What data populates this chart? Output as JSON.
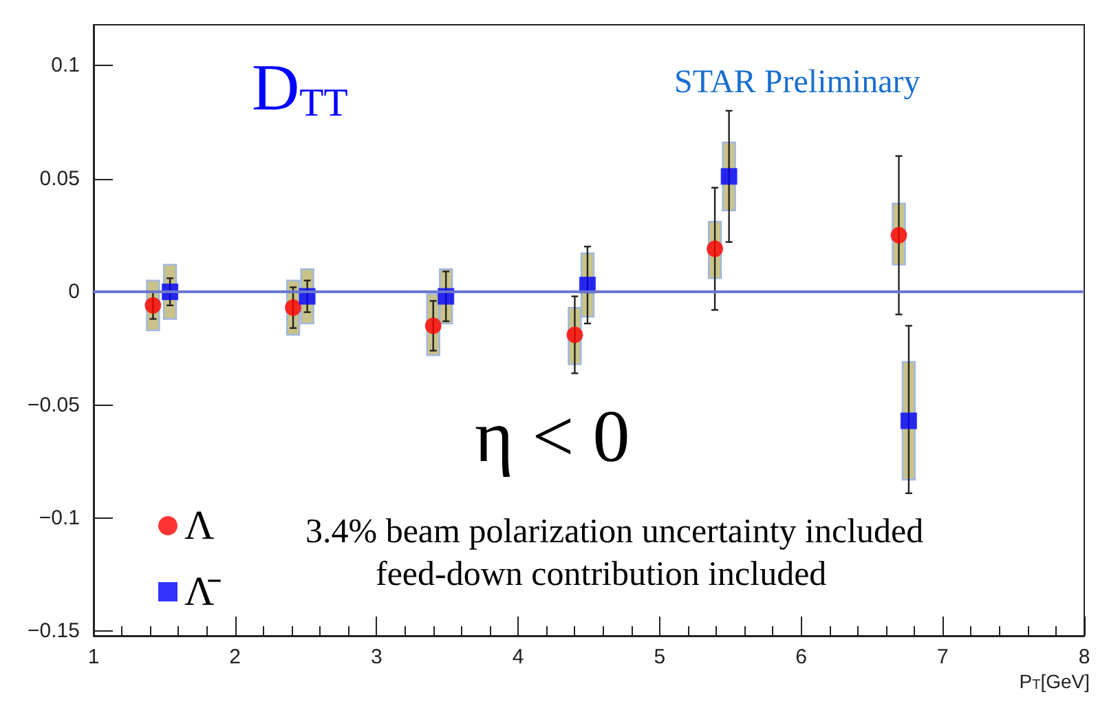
{
  "chart_data": {
    "type": "scatter",
    "xlabel": "P$_{T}$[GeV]",
    "xlim": [
      1,
      8
    ],
    "xticks": [
      1,
      2,
      3,
      4,
      5,
      6,
      7,
      8
    ],
    "ylim": [
      -0.152,
      0.118
    ],
    "yticks": [
      -0.15,
      -0.1,
      -0.05,
      0,
      0.05,
      0.1
    ],
    "grid": false,
    "legend": "bottom left",
    "ref_lines": [
      {
        "axis": "y",
        "value": 0,
        "color": "#6a78d0"
      }
    ],
    "annotations": [
      "D$_{TT}$",
      "STAR Preliminary",
      "η < 0",
      "3.4% beam polarization uncertainty included",
      "feed-down contribution included"
    ],
    "series": [
      {
        "type": "bar",
        "color": "#c9c389",
        "x": [
          1.42,
          2.41,
          3.4,
          4.4,
          5.39,
          6.69
        ],
        "base": [
          -0.017,
          -0.019,
          -0.028,
          -0.032,
          0.006,
          0.012
        ],
        "values": [
          0.022,
          0.024,
          0.027,
          0.025,
          0.025,
          0.027
        ]
      },
      {
        "type": "bar",
        "color": "#c9c389",
        "x": [
          1.54,
          2.51,
          3.49,
          4.49,
          5.49,
          6.76
        ],
        "base": [
          -0.012,
          -0.014,
          -0.014,
          -0.011,
          0.036,
          -0.083
        ],
        "values": [
          0.024,
          0.024,
          0.024,
          0.028,
          0.03,
          0.052
        ]
      },
      {
        "name": "Λ",
        "color": "#ff0000",
        "marker": "circle",
        "x": [
          1.42,
          2.41,
          3.4,
          4.4,
          5.39,
          6.69
        ],
        "values": [
          -0.006,
          -0.007,
          -0.015,
          -0.019,
          0.019,
          0.025
        ],
        "errors": [
          0.006,
          0.009,
          0.011,
          0.017,
          0.027,
          0.035
        ]
      },
      {
        "name": "Λ̄",
        "color": "#0000ff",
        "marker": "square",
        "x": [
          1.54,
          2.51,
          3.49,
          4.49,
          5.49,
          6.76
        ],
        "values": [
          0,
          -0.002,
          -0.002,
          0.003,
          0.051,
          -0.057
        ],
        "errors": [
          0.006,
          0.007,
          0.011,
          0.017,
          0.029,
          [
            -0.089,
            -0.015
          ]
        ]
      }
    ]
  }
}
